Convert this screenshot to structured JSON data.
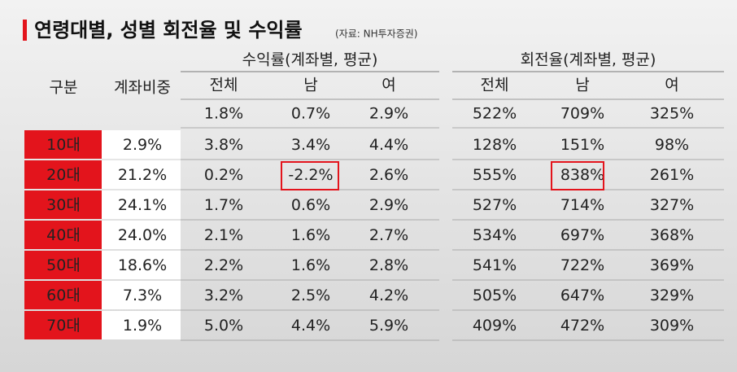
{
  "header": {
    "title": "연령대별, 성별 회전율 및 수익률",
    "source": "(자료: NH투자증권)"
  },
  "table": {
    "groups": [
      "수익률(계좌별, 평균)",
      "회전율(계좌별, 평균)"
    ],
    "columns": [
      "구분",
      "계좌비중",
      "전체",
      "남",
      "여",
      "전체",
      "남",
      "여"
    ],
    "total": [
      "1.8%",
      "0.7%",
      "2.9%",
      "522%",
      "709%",
      "325%"
    ],
    "rows": [
      [
        "10대",
        "2.9%",
        "3.8%",
        "3.4%",
        "4.4%",
        "128%",
        "151%",
        "98%"
      ],
      [
        "20대",
        "21.2%",
        "0.2%",
        "-2.2%",
        "2.6%",
        "555%",
        "838%",
        "261%"
      ],
      [
        "30대",
        "24.1%",
        "1.7%",
        "0.6%",
        "2.9%",
        "527%",
        "714%",
        "327%"
      ],
      [
        "40대",
        "24.0%",
        "2.1%",
        "1.6%",
        "2.7%",
        "534%",
        "697%",
        "368%"
      ],
      [
        "50대",
        "18.6%",
        "2.2%",
        "1.6%",
        "2.8%",
        "541%",
        "722%",
        "369%"
      ],
      [
        "60대",
        "7.3%",
        "3.2%",
        "2.5%",
        "4.2%",
        "505%",
        "647%",
        "329%"
      ],
      [
        "70대",
        "1.9%",
        "5.0%",
        "4.4%",
        "5.9%",
        "409%",
        "472%",
        "309%"
      ]
    ]
  }
}
